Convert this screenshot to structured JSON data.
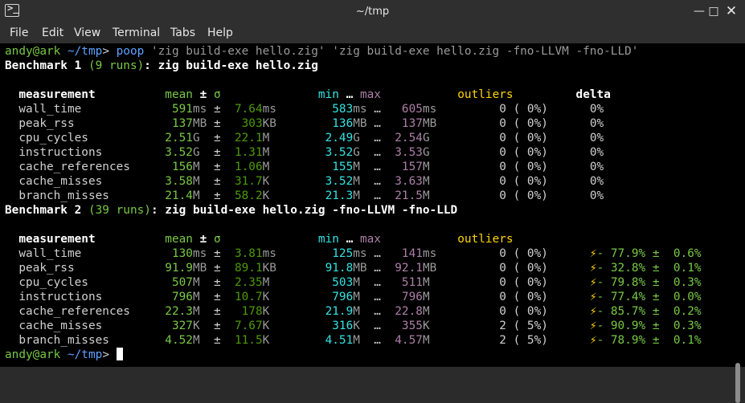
{
  "window": {
    "title": "~/tmp"
  },
  "menu": {
    "items": [
      "File",
      "Edit",
      "View",
      "Terminal",
      "Tabs",
      "Help"
    ]
  },
  "prompt": {
    "user_host": "andy@ark",
    "dir": "~/tmp",
    "sigil": ">"
  },
  "command": {
    "program": "poop",
    "args": " 'zig build-exe hello.zig' 'zig build-exe hello.zig -fno-LLVM -fno-LLD'"
  },
  "benchmarks": [
    {
      "label": "Benchmark 1",
      "runs": "(9 runs)",
      "cmd": ": zig build-exe hello.zig",
      "rows": [
        {
          "name": "wall_time",
          "mean": "591",
          "mean_u": "ms",
          "sigma": "7.64",
          "sigma_u": "ms",
          "min": "583",
          "min_u": "ms",
          "max": "605",
          "max_u": "ms",
          "outliers": "0 ( 0%)",
          "delta": "0%"
        },
        {
          "name": "peak_rss",
          "mean": "137",
          "mean_u": "MB",
          "sigma": "303",
          "sigma_u": "KB",
          "min": "136",
          "min_u": "MB",
          "max": "137",
          "max_u": "MB",
          "outliers": "0 ( 0%)",
          "delta": "0%"
        },
        {
          "name": "cpu_cycles",
          "mean": "2.51",
          "mean_u": "G",
          "sigma": "22.1",
          "sigma_u": "M",
          "min": "2.49",
          "min_u": "G",
          "max": "2.54",
          "max_u": "G",
          "outliers": "0 ( 0%)",
          "delta": "0%"
        },
        {
          "name": "instructions",
          "mean": "3.52",
          "mean_u": "G",
          "sigma": "1.31",
          "sigma_u": "M",
          "min": "3.52",
          "min_u": "G",
          "max": "3.53",
          "max_u": "G",
          "outliers": "0 ( 0%)",
          "delta": "0%"
        },
        {
          "name": "cache_references",
          "mean": "156",
          "mean_u": "M",
          "sigma": "1.06",
          "sigma_u": "M",
          "min": "155",
          "min_u": "M",
          "max": "157",
          "max_u": "M",
          "outliers": "0 ( 0%)",
          "delta": "0%"
        },
        {
          "name": "cache_misses",
          "mean": "3.58",
          "mean_u": "M",
          "sigma": "31.7",
          "sigma_u": "K",
          "min": "3.52",
          "min_u": "M",
          "max": "3.63",
          "max_u": "M",
          "outliers": "0 ( 0%)",
          "delta": "0%"
        },
        {
          "name": "branch_misses",
          "mean": "21.4",
          "mean_u": "M",
          "sigma": "58.2",
          "sigma_u": "K",
          "min": "21.3",
          "min_u": "M",
          "max": "21.5",
          "max_u": "M",
          "outliers": "0 ( 0%)",
          "delta": "0%"
        }
      ]
    },
    {
      "label": "Benchmark 2",
      "runs": "(39 runs)",
      "cmd": ": zig build-exe hello.zig -fno-LLVM -fno-LLD",
      "rows": [
        {
          "name": "wall_time",
          "mean": "130",
          "mean_u": "ms",
          "sigma": "3.81",
          "sigma_u": "ms",
          "min": "125",
          "min_u": "ms",
          "max": "141",
          "max_u": "ms",
          "outliers": "0 ( 0%)",
          "delta": "- 77.9% ±  0.6%"
        },
        {
          "name": "peak_rss",
          "mean": "91.9",
          "mean_u": "MB",
          "sigma": "89.1",
          "sigma_u": "KB",
          "min": "91.8",
          "min_u": "MB",
          "max": "92.1",
          "max_u": "MB",
          "outliers": "0 ( 0%)",
          "delta": "- 32.8% ±  0.1%"
        },
        {
          "name": "cpu_cycles",
          "mean": "507",
          "mean_u": "M",
          "sigma": "2.35",
          "sigma_u": "M",
          "min": "503",
          "min_u": "M",
          "max": "511",
          "max_u": "M",
          "outliers": "0 ( 0%)",
          "delta": "- 79.8% ±  0.3%"
        },
        {
          "name": "instructions",
          "mean": "796",
          "mean_u": "M",
          "sigma": "10.7",
          "sigma_u": "K",
          "min": "796",
          "min_u": "M",
          "max": "796",
          "max_u": "M",
          "outliers": "0 ( 0%)",
          "delta": "- 77.4% ±  0.0%"
        },
        {
          "name": "cache_references",
          "mean": "22.3",
          "mean_u": "M",
          "sigma": "178",
          "sigma_u": "K",
          "min": "21.9",
          "min_u": "M",
          "max": "22.8",
          "max_u": "M",
          "outliers": "0 ( 0%)",
          "delta": "- 85.7% ±  0.2%"
        },
        {
          "name": "cache_misses",
          "mean": "327",
          "mean_u": "K",
          "sigma": "7.67",
          "sigma_u": "K",
          "min": "316",
          "min_u": "K",
          "max": "355",
          "max_u": "K",
          "outliers": "2 ( 5%)",
          "delta": "- 90.9% ±  0.3%"
        },
        {
          "name": "branch_misses",
          "mean": "4.52",
          "mean_u": "M",
          "sigma": "11.5",
          "sigma_u": "K",
          "min": "4.51",
          "min_u": "M",
          "max": "4.57",
          "max_u": "M",
          "outliers": "2 ( 5%)",
          "delta": "- 78.9% ±  0.1%"
        }
      ]
    }
  ],
  "headers": {
    "measurement": "measurement",
    "mean": "mean",
    "pm": "±",
    "sigma": "σ",
    "min": "min",
    "ellipsis": "…",
    "max": "max",
    "outliers": "outliers",
    "delta": "delta"
  },
  "bolt": "⚡",
  "colors": {
    "accent_green": "#78c846",
    "prompt_blue": "#5ea0ff",
    "header_yellow": "#ffd400",
    "header_cyan": "#34e2e2",
    "header_purple": "#ad7fa8",
    "background": "#000000"
  }
}
